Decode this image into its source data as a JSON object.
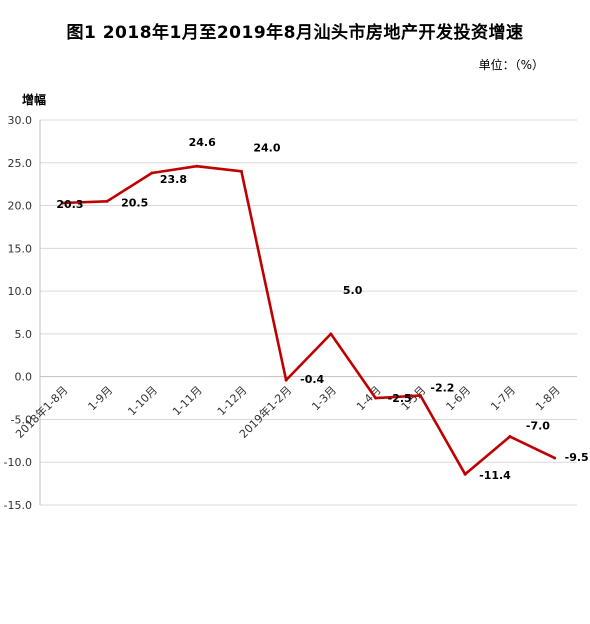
{
  "chart_data": {
    "type": "line",
    "title": "图1  2018年1月至2019年8月汕头市房地产开发投资增速",
    "unit_label": "单位：（%）",
    "ylabel": "增幅",
    "xlabel": "",
    "ylim": [
      -15,
      30
    ],
    "yticks": [
      "30.0",
      "25.0",
      "20.0",
      "15.0",
      "10.0",
      "5.0",
      "0.0",
      "-5.0",
      "-10.0",
      "-15.0"
    ],
    "categories": [
      "2018年1-8月",
      "1-9月",
      "1-10月",
      "1-11月",
      "1-12月",
      "2019年1-2月",
      "1-3月",
      "1-4月",
      "1-5月",
      "1-6月",
      "1-7月",
      "1-8月"
    ],
    "values": [
      20.3,
      20.5,
      23.8,
      24.6,
      24.0,
      -0.4,
      5.0,
      -2.5,
      -2.2,
      -11.4,
      -7.0,
      -9.5
    ],
    "labels": [
      "20.3",
      "20.5",
      "23.8",
      "24.6",
      "24.0",
      "-0.4",
      "5.0",
      "-2.5",
      "-2.2",
      "-11.4",
      "-7.0",
      "-9.5"
    ],
    "line_color": "#C00000",
    "grid": true,
    "legend": "none"
  }
}
